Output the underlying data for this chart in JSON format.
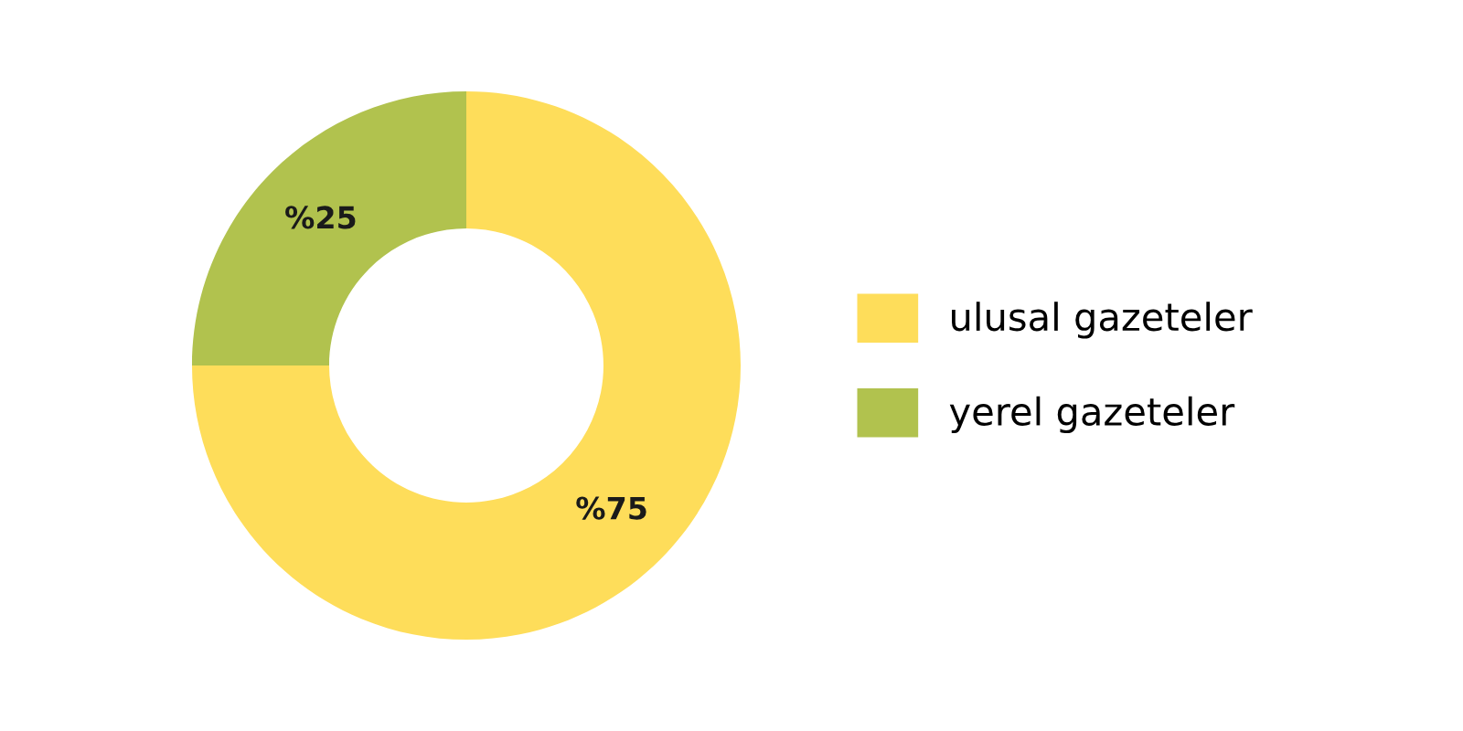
{
  "chart_data": {
    "type": "donut",
    "categories": [
      "ulusal gazeteler",
      "yerel gazeteler"
    ],
    "values": [
      75,
      25
    ],
    "colors": [
      "#fedd5a",
      "#b1c24e"
    ],
    "value_labels": [
      "%75",
      "%25"
    ],
    "legend": "right"
  }
}
